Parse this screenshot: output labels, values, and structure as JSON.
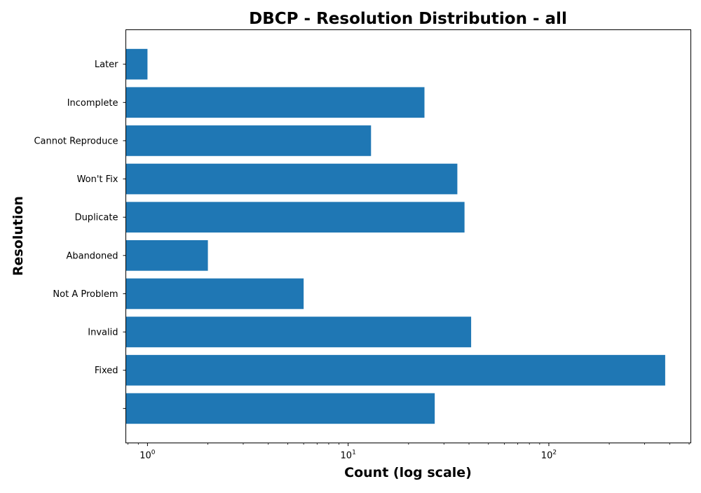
{
  "chart_data": {
    "type": "bar",
    "orientation": "horizontal",
    "title": "DBCP - Resolution Distribution - all",
    "xlabel": "Count (log scale)",
    "ylabel": "Resolution",
    "xscale": "log",
    "xlim": [
      0.78,
      510
    ],
    "xticks": [
      1,
      10,
      100
    ],
    "grid": false,
    "bar_color": "#1f77b4",
    "categories": [
      "",
      "Fixed",
      "Invalid",
      "Not A Problem",
      "Abandoned",
      "Duplicate",
      "Won't Fix",
      "Cannot Reproduce",
      "Incomplete",
      "Later"
    ],
    "values": [
      27,
      380,
      41,
      6,
      2,
      38,
      35,
      13,
      24,
      1
    ]
  }
}
